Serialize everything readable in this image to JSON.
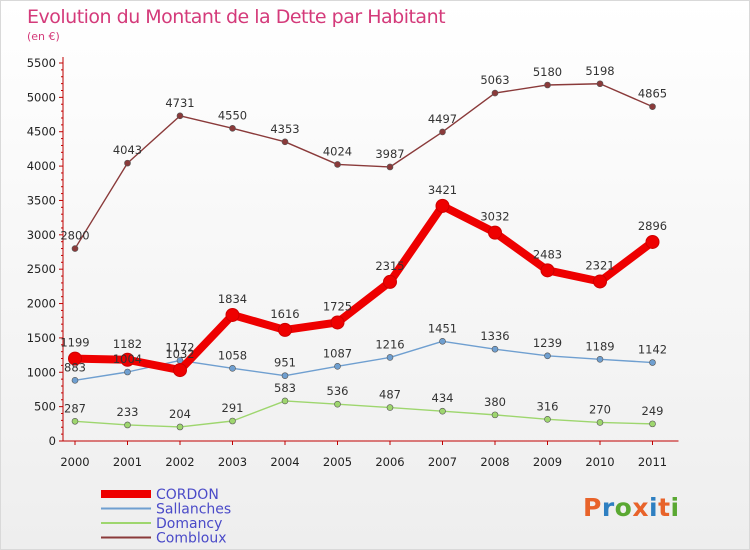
{
  "header": {
    "title": "Evolution du Montant de la Dette par Habitant",
    "unit": "(en €)"
  },
  "logo": {
    "text": "Proxiti",
    "letter_colors": [
      "#e8632a",
      "#2e7fc1",
      "#5aa832",
      "#e8632a",
      "#2e7fc1",
      "#e8632a",
      "#5aa832"
    ]
  },
  "chart_data": {
    "type": "line",
    "title": "Evolution du Montant de la Dette par Habitant",
    "ylabel": "(en €)",
    "xlabel": "",
    "ylim": [
      0,
      5500
    ],
    "yticks": [
      0,
      500,
      1000,
      1500,
      2000,
      2500,
      3000,
      3500,
      4000,
      4500,
      5000,
      5500
    ],
    "grid": false,
    "legend_position": "bottom-left",
    "categories": [
      "2000",
      "2001",
      "2002",
      "2003",
      "2004",
      "2005",
      "2006",
      "2007",
      "2008",
      "2009",
      "2010",
      "2011"
    ],
    "series": [
      {
        "name": "CORDON",
        "color": "#ee0000",
        "emphasis": true,
        "values": [
          1199,
          1182,
          1032,
          1834,
          1616,
          1725,
          2315,
          3421,
          3032,
          2483,
          2321,
          2896
        ]
      },
      {
        "name": "Sallanches",
        "color": "#6f9fd0",
        "values": [
          883,
          1004,
          1172,
          1058,
          951,
          1087,
          1216,
          1451,
          1336,
          1239,
          1189,
          1142
        ]
      },
      {
        "name": "Domancy",
        "color": "#9ed66e",
        "values": [
          287,
          233,
          204,
          291,
          583,
          536,
          487,
          434,
          380,
          316,
          270,
          249
        ]
      },
      {
        "name": "Combloux",
        "color": "#8a3a3a",
        "values": [
          2800,
          4043,
          4731,
          4550,
          4353,
          4024,
          3987,
          4497,
          5063,
          5180,
          5198,
          4865
        ]
      }
    ]
  }
}
